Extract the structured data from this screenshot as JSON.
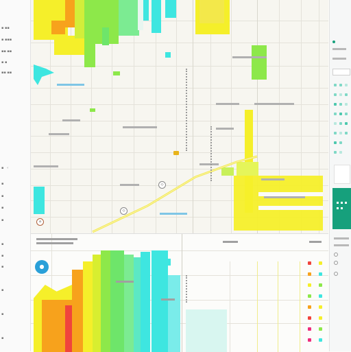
{
  "colors": {
    "yellow": "#f5ef2a",
    "lime": "#8de84a",
    "cyan": "#3ee6e0",
    "orange": "#f7a21c",
    "red": "#f0443c",
    "magenta": "#ee2e7c",
    "teal_panel": "#16a07c",
    "blue_marker": "#2aa0d8"
  },
  "icons": {
    "map_pin": "pin-icon",
    "route": "route-shield-icon",
    "locate": "locate-icon",
    "compass": "compass-icon"
  },
  "map": {
    "street_labels": [],
    "route_shields": [],
    "legend_items": []
  }
}
